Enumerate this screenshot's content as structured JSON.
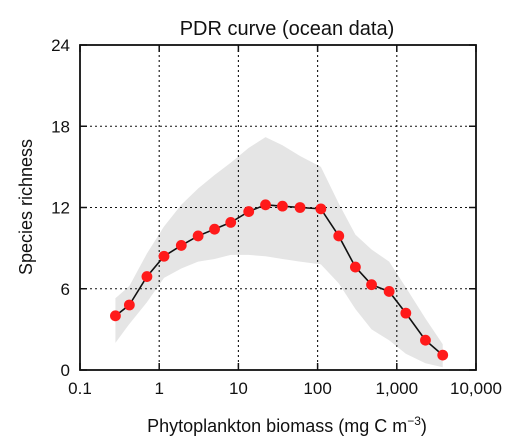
{
  "chart_data": {
    "type": "line",
    "title": "PDR curve (ocean data)",
    "xlabel": {
      "prefix": "Phytoplankton biomass (mg C m",
      "superscript": "−3",
      "suffix": ")"
    },
    "ylabel": "Species richness",
    "x_scale": "log",
    "xlim": [
      0.1,
      10000
    ],
    "ylim": [
      0,
      24
    ],
    "x_ticks": [
      0.1,
      1,
      10,
      100,
      1000,
      10000
    ],
    "x_tick_labels": [
      "0.1",
      "1",
      "10",
      "100",
      "1,000",
      "10,000"
    ],
    "y_ticks": [
      0,
      6,
      12,
      18,
      24
    ],
    "y_tick_labels": [
      "0",
      "6",
      "12",
      "18",
      "24"
    ],
    "grid": {
      "x": true,
      "y": true,
      "style": "dotted"
    },
    "legend": "none",
    "colors": {
      "series_line": "#111111",
      "points": "#ff1a1a",
      "band": "#e5e5e5",
      "axis": "#111111",
      "grid": "#111111"
    },
    "series": [
      {
        "x": [
          0.28,
          0.42,
          0.7,
          1.15,
          1.9,
          3.1,
          5.0,
          8.0,
          13.5,
          22,
          36,
          60,
          110,
          185,
          300,
          480,
          800,
          1300,
          2300,
          3800
        ],
        "y": [
          4.0,
          4.8,
          6.9,
          8.4,
          9.2,
          9.9,
          10.4,
          10.9,
          11.7,
          12.2,
          12.1,
          12.0,
          11.9,
          9.9,
          7.6,
          6.3,
          5.8,
          4.2,
          2.2,
          1.1
        ]
      }
    ],
    "band": {
      "x": [
        0.28,
        0.42,
        0.7,
        1.15,
        1.9,
        3.1,
        5.0,
        8.0,
        13.5,
        22,
        36,
        60,
        110,
        185,
        300,
        480,
        800,
        1300,
        2300,
        3800
      ],
      "lower": [
        2.0,
        3.4,
        5.0,
        6.8,
        7.5,
        8.0,
        8.2,
        8.5,
        8.5,
        8.4,
        8.2,
        8.0,
        7.8,
        6.4,
        4.5,
        3.0,
        2.2,
        1.2,
        0.5,
        0.2
      ],
      "upper": [
        5.3,
        6.2,
        8.6,
        10.6,
        12.2,
        13.4,
        14.4,
        15.3,
        16.4,
        17.2,
        16.6,
        15.8,
        15.0,
        12.3,
        10.0,
        8.9,
        8.0,
        6.1,
        3.8,
        1.9
      ]
    }
  }
}
